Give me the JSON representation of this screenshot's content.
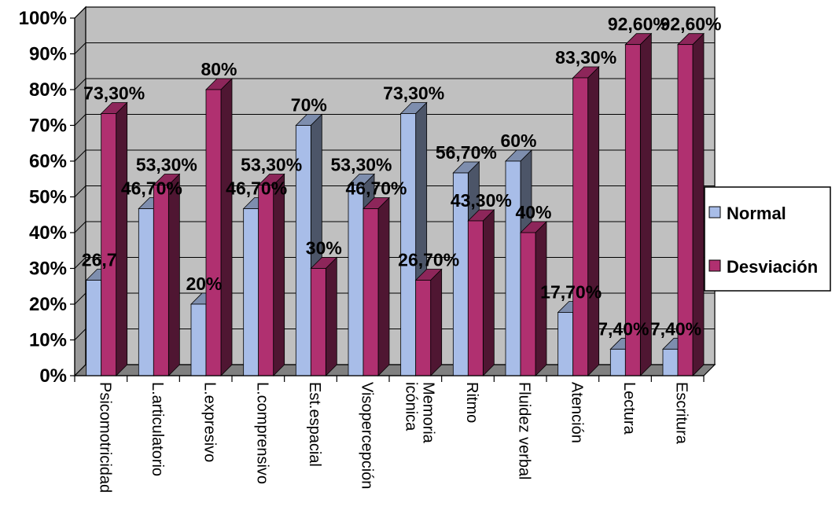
{
  "chart_data": {
    "type": "bar",
    "categories": [
      "Psicomotricidad",
      "L.articulatorio",
      "L.expresivo",
      "L.comprensivo",
      "Est.espacial",
      "Visopercepción",
      "Memoria icónica",
      "Ritmo",
      "Fluidez verbal",
      "Atención",
      "Lectura",
      "Escritura"
    ],
    "category_lines": [
      [
        "Psicomotricidad"
      ],
      [
        "L.articulatorio"
      ],
      [
        "L.expresivo"
      ],
      [
        "L.comprensivo"
      ],
      [
        "Est.espacial"
      ],
      [
        "Visopercepción"
      ],
      [
        "Memoria",
        "icónica"
      ],
      [
        "Ritmo"
      ],
      [
        "Fluidez verbal"
      ],
      [
        "Atención"
      ],
      [
        "Lectura"
      ],
      [
        "Escritura"
      ]
    ],
    "series": [
      {
        "name": "Normal",
        "color": "#a8bde8",
        "values": [
          26.7,
          46.7,
          20,
          46.7,
          70,
          53.3,
          73.3,
          56.7,
          60,
          17.7,
          7.4,
          7.4
        ],
        "labels": [
          "26,7",
          "46,70%",
          "20%",
          "46,70%",
          "70%",
          "53,30%",
          "73,30%",
          "56,70%",
          "60%",
          "17,70%",
          "7,40%",
          "7,40%"
        ]
      },
      {
        "name": "Desviación",
        "color": "#b03070",
        "values": [
          73.3,
          53.3,
          80,
          53.3,
          30,
          46.7,
          26.7,
          43.3,
          40,
          83.3,
          92.6,
          92.6
        ],
        "labels": [
          "73,30%",
          "53,30%",
          "80%",
          "53,30%",
          "30%",
          "46,70%",
          "26,70%",
          "43,30%",
          "40%",
          "83,30%",
          "92,60%",
          "92,60%"
        ]
      }
    ],
    "y_ticks": [
      "0%",
      "10%",
      "20%",
      "30%",
      "40%",
      "50%",
      "60%",
      "70%",
      "80%",
      "90%",
      "100%"
    ],
    "ylim": [
      0,
      100
    ],
    "grid": true,
    "legend_position": "right",
    "background_color": "#c0c0c0",
    "floor_color": "#808080"
  }
}
